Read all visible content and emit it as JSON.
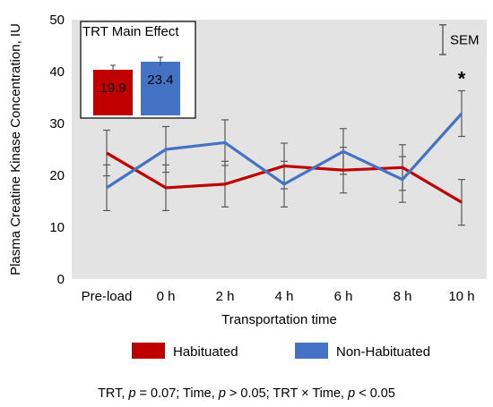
{
  "chart_data": {
    "type": "line",
    "ylabel": "Plasma Creatine Kinase Concentration, IU",
    "xlabel": "Transportation time",
    "categories": [
      "Pre-load",
      "0 h",
      "2 h",
      "4 h",
      "6 h",
      "8 h",
      "10 h"
    ],
    "ylim": [
      0,
      50
    ],
    "yticks": [
      0,
      10,
      20,
      30,
      40,
      50
    ],
    "grid": false,
    "legend_position": "bottom",
    "series": [
      {
        "name": "Habituated",
        "color": "#c00000",
        "values": [
          24.3,
          17.6,
          18.3,
          21.8,
          21.0,
          21.5,
          14.8
        ],
        "err": [
          4.4,
          4.4,
          4.4,
          4.4,
          4.4,
          4.4,
          4.4
        ]
      },
      {
        "name": "Non-Habituated",
        "color": "#4472c4",
        "values": [
          17.6,
          25.0,
          26.3,
          18.3,
          24.6,
          19.2,
          31.9
        ],
        "err": [
          4.4,
          4.4,
          4.4,
          4.4,
          4.4,
          4.4,
          4.4
        ]
      }
    ],
    "annotation": "*",
    "sem_label": "SEM",
    "inset": {
      "title": "TRT Main Effect",
      "labels": [
        "19.9",
        "23.4"
      ],
      "values": [
        19.9,
        23.4
      ]
    }
  },
  "footnote": {
    "part1": "TRT, ",
    "p1": "p",
    "part2": " = 0.07; Time, ",
    "p2": "p",
    "part3": " > 0.05; TRT × Time, ",
    "p3": "p",
    "part4": " < 0.05"
  }
}
